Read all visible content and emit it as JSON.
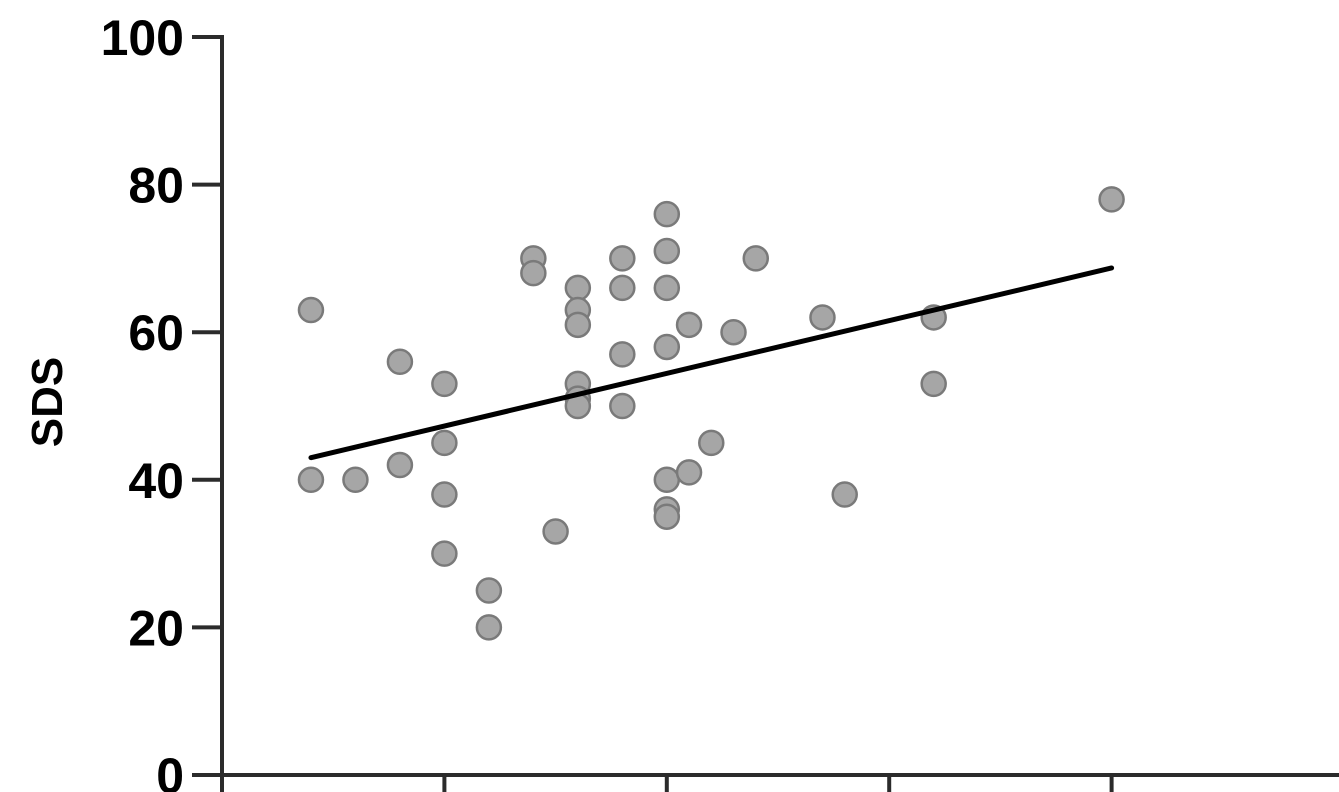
{
  "chart_data": {
    "type": "scatter",
    "ylabel": "SDS",
    "xlabel": "",
    "ylim": [
      0,
      100
    ],
    "y_ticks": [
      {
        "value": 0,
        "label": "0"
      },
      {
        "value": 20,
        "label": "20"
      },
      {
        "value": 40,
        "label": "40"
      },
      {
        "value": 60,
        "label": "60"
      },
      {
        "value": 80,
        "label": "80"
      },
      {
        "value": 100,
        "label": "100"
      }
    ],
    "xlim": [
      0,
      5
    ],
    "x_ticks": [
      0,
      1,
      2,
      3,
      4
    ],
    "x_tick_labels_visible": false,
    "point_color": "#a6a6a6",
    "point_stroke": "#7a7a7a",
    "line_color": "#000000",
    "axis_color": "#2b2b2b",
    "points": [
      {
        "x": 0.4,
        "y": 63
      },
      {
        "x": 0.4,
        "y": 40
      },
      {
        "x": 0.6,
        "y": 40
      },
      {
        "x": 0.8,
        "y": 56
      },
      {
        "x": 0.8,
        "y": 42
      },
      {
        "x": 1.0,
        "y": 53
      },
      {
        "x": 1.0,
        "y": 45
      },
      {
        "x": 1.0,
        "y": 38
      },
      {
        "x": 1.0,
        "y": 30
      },
      {
        "x": 1.2,
        "y": 25
      },
      {
        "x": 1.2,
        "y": 20
      },
      {
        "x": 1.4,
        "y": 70
      },
      {
        "x": 1.4,
        "y": 68
      },
      {
        "x": 1.5,
        "y": 33
      },
      {
        "x": 1.6,
        "y": 66
      },
      {
        "x": 1.6,
        "y": 63
      },
      {
        "x": 1.6,
        "y": 61
      },
      {
        "x": 1.6,
        "y": 53
      },
      {
        "x": 1.6,
        "y": 51
      },
      {
        "x": 1.6,
        "y": 50
      },
      {
        "x": 1.8,
        "y": 70
      },
      {
        "x": 1.8,
        "y": 66
      },
      {
        "x": 1.8,
        "y": 57
      },
      {
        "x": 1.8,
        "y": 50
      },
      {
        "x": 2.0,
        "y": 76
      },
      {
        "x": 2.0,
        "y": 71
      },
      {
        "x": 2.0,
        "y": 66
      },
      {
        "x": 2.0,
        "y": 58
      },
      {
        "x": 2.0,
        "y": 40
      },
      {
        "x": 2.0,
        "y": 36
      },
      {
        "x": 2.0,
        "y": 35
      },
      {
        "x": 2.1,
        "y": 61
      },
      {
        "x": 2.1,
        "y": 41
      },
      {
        "x": 2.2,
        "y": 45
      },
      {
        "x": 2.3,
        "y": 60
      },
      {
        "x": 2.4,
        "y": 70
      },
      {
        "x": 2.7,
        "y": 62
      },
      {
        "x": 2.8,
        "y": 38
      },
      {
        "x": 3.2,
        "y": 62
      },
      {
        "x": 3.2,
        "y": 53
      },
      {
        "x": 4.0,
        "y": 78
      }
    ],
    "trendline": {
      "x": [
        0.4,
        4.0
      ],
      "y": [
        43,
        68.7
      ]
    }
  }
}
